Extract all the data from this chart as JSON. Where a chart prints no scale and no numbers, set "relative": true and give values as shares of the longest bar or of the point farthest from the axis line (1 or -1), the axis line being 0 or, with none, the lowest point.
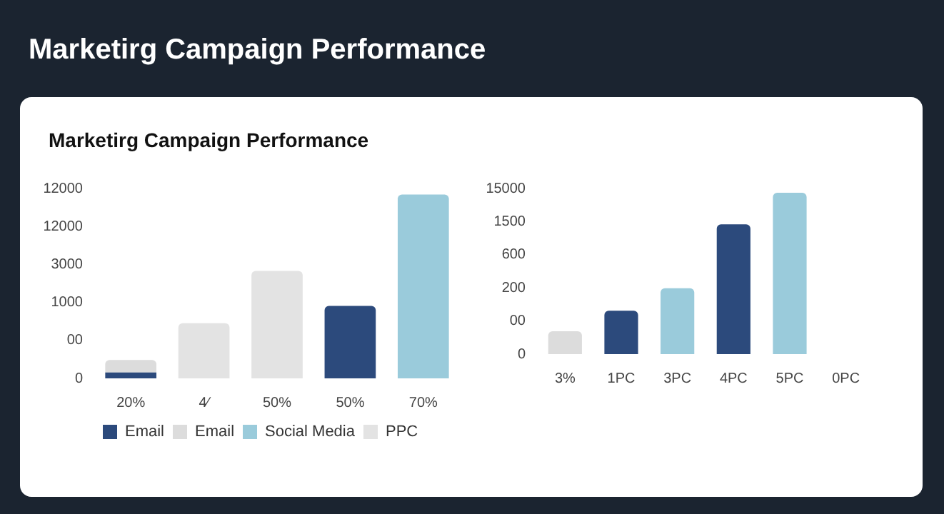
{
  "chart_data": [
    {
      "type": "bar",
      "title": "Marketirg Campaign Performance",
      "subtitle": "Marketirg Campaign Performance",
      "categories": [
        "20%",
        "4⁄",
        "50%",
        "50%",
        "70%"
      ],
      "stacked": true,
      "relative": true,
      "series": [
        {
          "name": "Email",
          "color": "#2c4a7c",
          "values": [
            0.032,
            null,
            null,
            0.394,
            null
          ]
        },
        {
          "name": "Email",
          "color": "#dcdcdc",
          "values": [
            0.068,
            null,
            null,
            null,
            null
          ]
        },
        {
          "name": "Social Media",
          "color": "#9acbdb",
          "values": [
            null,
            null,
            null,
            null,
            1
          ]
        },
        {
          "name": "PPC",
          "color": "#e3e3e3",
          "values": [
            null,
            0.3,
            0.585,
            null,
            null
          ]
        }
      ],
      "annotations": [
        "0",
        "00",
        "1000",
        "3000",
        "12000",
        "12000"
      ],
      "legend": "bottom left"
    },
    {
      "type": "bar",
      "relative": true,
      "categories": [
        "3%",
        "1PC",
        "3PC",
        "4PC",
        "5PC",
        "0PC"
      ],
      "values": [
        0.142,
        0.269,
        0.408,
        0.804,
        1,
        null
      ],
      "colors": [
        "#dcdcdc",
        "#2c4a7c",
        "#9acbdb",
        "#2c4a7c",
        "#9acbdb",
        "#dcdcdc"
      ],
      "annotations": [
        "0",
        "00",
        "200",
        "600",
        "1500",
        "15000"
      ]
    }
  ]
}
